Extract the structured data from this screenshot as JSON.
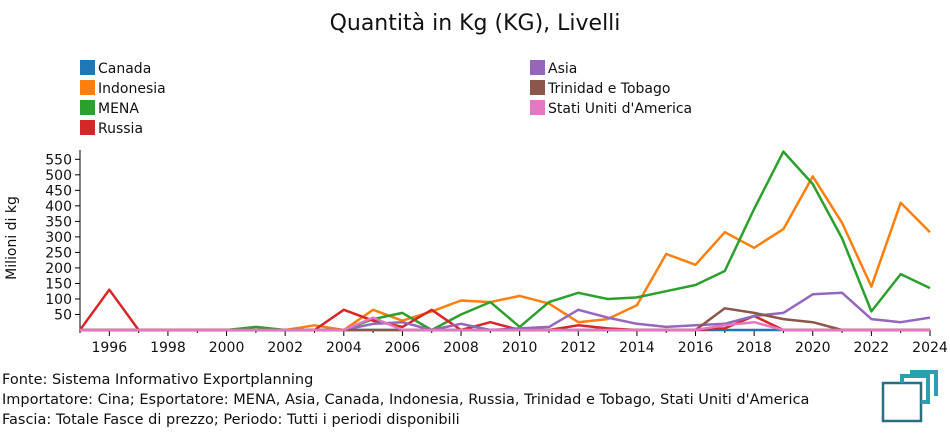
{
  "chart_data": {
    "type": "line",
    "title": "Quantità in Kg (KG), Livelli",
    "ylabel": "Milioni di kg",
    "xlabel": "",
    "xlim": [
      1995,
      2024
    ],
    "ylim": [
      0,
      580
    ],
    "x_ticks": [
      1996,
      1998,
      2000,
      2002,
      2004,
      2006,
      2008,
      2010,
      2012,
      2014,
      2016,
      2018,
      2020,
      2022,
      2024
    ],
    "y_ticks": [
      50,
      100,
      150,
      200,
      250,
      300,
      350,
      400,
      450,
      500,
      550
    ],
    "legend_placement": "top",
    "grid": false,
    "series": [
      {
        "name": "Canada",
        "color": "#1f77b4",
        "x": [
          1995,
          1996,
          1997,
          1998,
          1999,
          2000,
          2001,
          2002,
          2003,
          2004,
          2005,
          2006,
          2007,
          2008,
          2009,
          2010,
          2011,
          2012,
          2013,
          2014,
          2015,
          2016,
          2017,
          2018,
          2019,
          2020,
          2021,
          2022,
          2023,
          2024
        ],
        "values": [
          0,
          0,
          0,
          0,
          0,
          0,
          0,
          0,
          0,
          0,
          0,
          0,
          0,
          0,
          0,
          0,
          0,
          0,
          0,
          0,
          0,
          0,
          0,
          0,
          0,
          0,
          0,
          0,
          0,
          0
        ]
      },
      {
        "name": "Indonesia",
        "color": "#ff7f0e",
        "x": [
          1995,
          1996,
          1997,
          1998,
          1999,
          2000,
          2001,
          2002,
          2003,
          2004,
          2005,
          2006,
          2007,
          2008,
          2009,
          2010,
          2011,
          2012,
          2013,
          2014,
          2015,
          2016,
          2017,
          2018,
          2019,
          2020,
          2021,
          2022,
          2023,
          2024
        ],
        "values": [
          0,
          0,
          0,
          0,
          0,
          0,
          0,
          0,
          15,
          0,
          65,
          30,
          60,
          95,
          90,
          110,
          85,
          25,
          35,
          80,
          245,
          210,
          315,
          265,
          325,
          495,
          345,
          140,
          410,
          315
        ]
      },
      {
        "name": "MENA",
        "color": "#2ca02c",
        "x": [
          1995,
          1996,
          1997,
          1998,
          1999,
          2000,
          2001,
          2002,
          2003,
          2004,
          2005,
          2006,
          2007,
          2008,
          2009,
          2010,
          2011,
          2012,
          2013,
          2014,
          2015,
          2016,
          2017,
          2018,
          2019,
          2020,
          2021,
          2022,
          2023,
          2024
        ],
        "values": [
          0,
          0,
          0,
          0,
          0,
          0,
          10,
          0,
          0,
          0,
          35,
          55,
          0,
          50,
          90,
          10,
          90,
          120,
          100,
          105,
          125,
          145,
          190,
          390,
          575,
          470,
          295,
          60,
          180,
          135
        ]
      },
      {
        "name": "Russia",
        "color": "#d62728",
        "x": [
          1995,
          1996,
          1997,
          1998,
          1999,
          2000,
          2001,
          2002,
          2003,
          2004,
          2005,
          2006,
          2007,
          2008,
          2009,
          2010,
          2011,
          2012,
          2013,
          2014,
          2015,
          2016,
          2017,
          2018,
          2019,
          2020,
          2021,
          2022,
          2023,
          2024
        ],
        "values": [
          0,
          130,
          0,
          0,
          0,
          0,
          0,
          0,
          0,
          65,
          30,
          10,
          65,
          0,
          25,
          0,
          0,
          15,
          5,
          0,
          0,
          0,
          5,
          45,
          0,
          0,
          0,
          0,
          0,
          0
        ]
      },
      {
        "name": "Asia",
        "color": "#9467bd",
        "x": [
          1995,
          1996,
          1997,
          1998,
          1999,
          2000,
          2001,
          2002,
          2003,
          2004,
          2005,
          2006,
          2007,
          2008,
          2009,
          2010,
          2011,
          2012,
          2013,
          2014,
          2015,
          2016,
          2017,
          2018,
          2019,
          2020,
          2021,
          2022,
          2023,
          2024
        ],
        "values": [
          0,
          0,
          0,
          0,
          0,
          0,
          0,
          0,
          0,
          0,
          20,
          25,
          0,
          20,
          0,
          5,
          10,
          65,
          40,
          20,
          10,
          15,
          20,
          45,
          55,
          115,
          120,
          35,
          25,
          40
        ]
      },
      {
        "name": "Trinidad e Tobago",
        "color": "#8c564b",
        "x": [
          1995,
          1996,
          1997,
          1998,
          1999,
          2000,
          2001,
          2002,
          2003,
          2004,
          2005,
          2006,
          2007,
          2008,
          2009,
          2010,
          2011,
          2012,
          2013,
          2014,
          2015,
          2016,
          2017,
          2018,
          2019,
          2020,
          2021,
          2022,
          2023,
          2024
        ],
        "values": [
          0,
          0,
          0,
          0,
          0,
          0,
          0,
          0,
          0,
          0,
          0,
          0,
          0,
          0,
          0,
          0,
          0,
          0,
          0,
          0,
          0,
          0,
          70,
          55,
          35,
          25,
          0,
          0,
          0,
          0
        ]
      },
      {
        "name": "Stati Uniti d'America",
        "color": "#e377c2",
        "x": [
          1995,
          1996,
          1997,
          1998,
          1999,
          2000,
          2001,
          2002,
          2003,
          2004,
          2005,
          2006,
          2007,
          2008,
          2009,
          2010,
          2011,
          2012,
          2013,
          2014,
          2015,
          2016,
          2017,
          2018,
          2019,
          2020,
          2021,
          2022,
          2023,
          2024
        ],
        "values": [
          0,
          0,
          0,
          0,
          0,
          0,
          0,
          0,
          0,
          0,
          40,
          0,
          0,
          0,
          0,
          0,
          0,
          0,
          0,
          0,
          0,
          0,
          15,
          25,
          0,
          0,
          0,
          0,
          0,
          0
        ]
      }
    ]
  },
  "footer": {
    "source": "Fonte: Sistema Informativo Exportplanning",
    "importer": "Importatore: Cina; Esportatore: MENA, Asia, Canada, Indonesia, Russia, Trinidad e Tobago, Stati Uniti d'America",
    "range": "Fascia: Totale Fasce di prezzo; Periodo: Tutti i periodi disponibili"
  },
  "logo": {
    "name": "exportplanning-logo",
    "color": "#2a6f7f"
  }
}
